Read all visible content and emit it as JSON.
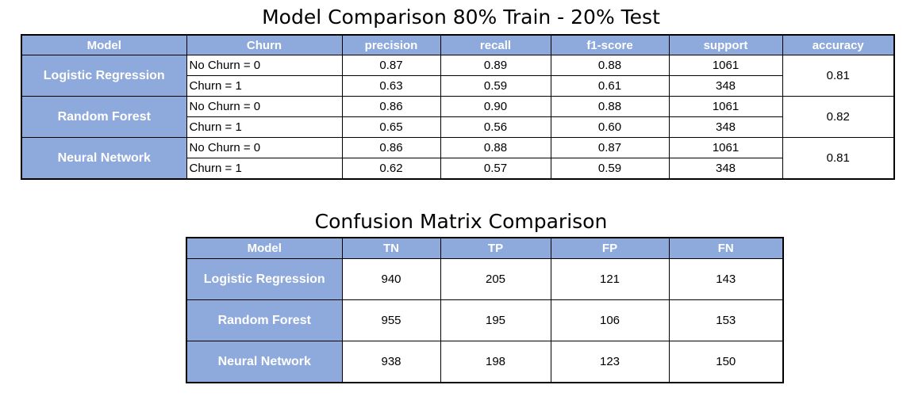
{
  "chart_data": [
    {
      "type": "table",
      "title": "Model Comparison 80% Train - 20% Test",
      "columns": [
        "Model",
        "Churn",
        "precision",
        "recall",
        "f1-score",
        "support",
        "accuracy"
      ],
      "rows": [
        {
          "model": "Logistic Regression",
          "accuracy": "0.81",
          "classes": [
            {
              "label": "No Churn = 0",
              "precision": "0.87",
              "recall": "0.89",
              "f1": "0.88",
              "support": "1061"
            },
            {
              "label": "Churn = 1",
              "precision": "0.63",
              "recall": "0.59",
              "f1": "0.61",
              "support": "348"
            }
          ]
        },
        {
          "model": "Random Forest",
          "accuracy": "0.82",
          "classes": [
            {
              "label": "No Churn = 0",
              "precision": "0.86",
              "recall": "0.90",
              "f1": "0.88",
              "support": "1061"
            },
            {
              "label": "Churn = 1",
              "precision": "0.65",
              "recall": "0.56",
              "f1": "0.60",
              "support": "348"
            }
          ]
        },
        {
          "model": "Neural Network",
          "accuracy": "0.81",
          "classes": [
            {
              "label": "No Churn = 0",
              "precision": "0.86",
              "recall": "0.88",
              "f1": "0.87",
              "support": "1061"
            },
            {
              "label": "Churn = 1",
              "precision": "0.62",
              "recall": "0.57",
              "f1": "0.59",
              "support": "348"
            }
          ]
        }
      ]
    },
    {
      "type": "table",
      "title": "Confusion Matrix Comparison",
      "columns": [
        "Model",
        "TN",
        "TP",
        "FP",
        "FN"
      ],
      "rows": [
        {
          "model": "Logistic Regression",
          "values": [
            "940",
            "205",
            "121",
            "143"
          ]
        },
        {
          "model": "Random Forest",
          "values": [
            "955",
            "195",
            "106",
            "153"
          ]
        },
        {
          "model": "Neural Network",
          "values": [
            "938",
            "198",
            "123",
            "150"
          ]
        }
      ]
    }
  ],
  "colors": {
    "header_fill": "#8ea9db",
    "header_text": "#ffffff",
    "border": "#000000"
  }
}
